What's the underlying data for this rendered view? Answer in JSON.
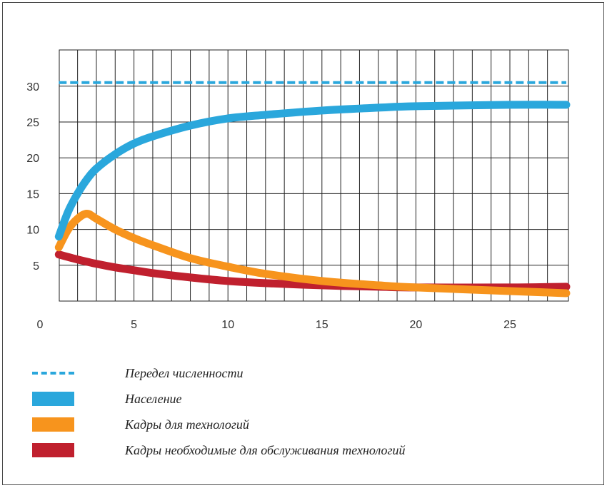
{
  "chart_data": {
    "type": "line",
    "title": "",
    "xlabel": "",
    "ylabel": "",
    "xlim": [
      -1.5,
      28
    ],
    "ylim": [
      0,
      35
    ],
    "x_ticks": [
      0,
      5,
      10,
      15,
      20,
      25
    ],
    "y_ticks": [
      5,
      10,
      15,
      20,
      25,
      30
    ],
    "grid": true,
    "legend_position": "bottom",
    "series": [
      {
        "name": "Передел численности",
        "color": "#2aa7dc",
        "style": "dashed",
        "x": [
          1,
          28
        ],
        "y": [
          30.5,
          30.5
        ]
      },
      {
        "name": "Население",
        "color": "#2aa7dc",
        "style": "solid",
        "x": [
          1,
          1.5,
          2,
          2.5,
          3,
          4,
          5,
          6,
          8,
          10,
          12,
          15,
          18,
          20,
          25,
          28
        ],
        "y": [
          9,
          12.5,
          15,
          17,
          18.5,
          20.5,
          22,
          23,
          24.5,
          25.5,
          26,
          26.6,
          27,
          27.2,
          27.4,
          27.4
        ]
      },
      {
        "name": "Кадры для технологий",
        "color": "#f7941d",
        "style": "solid",
        "x": [
          1,
          1.5,
          2,
          2.5,
          3,
          4,
          5,
          6,
          8,
          10,
          12,
          15,
          18,
          20,
          25,
          28
        ],
        "y": [
          7.5,
          10,
          11.5,
          12.2,
          11.5,
          10,
          8.8,
          7.8,
          6,
          4.8,
          3.8,
          2.8,
          2.2,
          1.9,
          1.4,
          1.1
        ]
      },
      {
        "name": "Кадры необходимые для обслуживания технологий",
        "color": "#c0202e",
        "style": "solid",
        "x": [
          1,
          2,
          3,
          4,
          5,
          6,
          8,
          10,
          12,
          15,
          18,
          20,
          25,
          28
        ],
        "y": [
          6.5,
          5.8,
          5.2,
          4.7,
          4.3,
          3.9,
          3.3,
          2.8,
          2.5,
          2.2,
          2.0,
          1.9,
          1.9,
          2.0
        ]
      }
    ]
  }
}
